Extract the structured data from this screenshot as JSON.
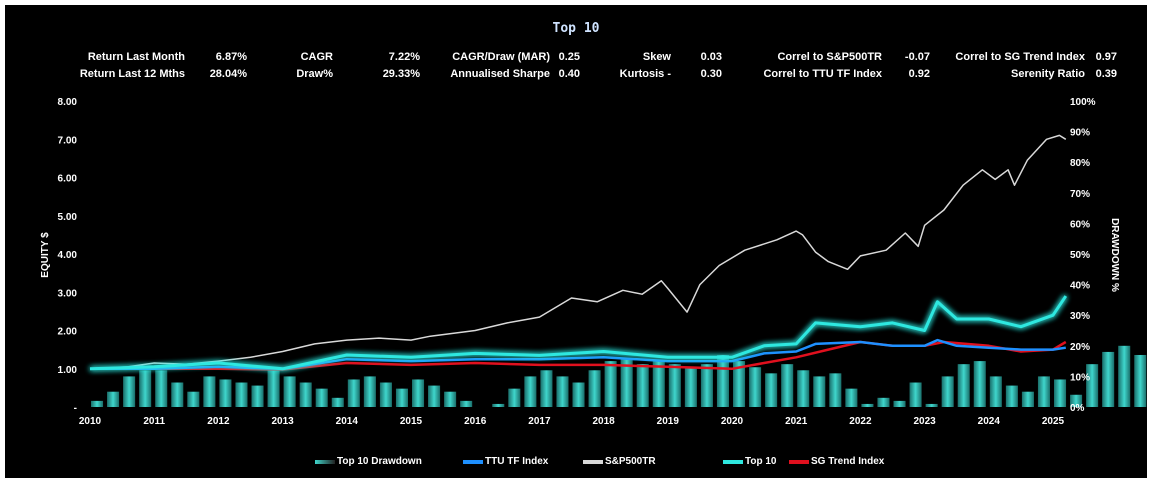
{
  "chart_data": {
    "type": "line",
    "title": "Top 10",
    "ylabel": "EQUITY $",
    "y2label": "DRAWDOWN %",
    "ylim": [
      0,
      8
    ],
    "y2lim": [
      0,
      100
    ],
    "xlim": [
      2010,
      2025.2
    ],
    "y_ticks": [
      "-",
      "1.00",
      "2.00",
      "3.00",
      "4.00",
      "5.00",
      "6.00",
      "7.00",
      "8.00"
    ],
    "y2_ticks": [
      "0%",
      "10%",
      "20%",
      "30%",
      "40%",
      "50%",
      "60%",
      "70%",
      "80%",
      "90%",
      "100%"
    ],
    "x_ticks": [
      "2010",
      "2011",
      "2012",
      "2013",
      "2014",
      "2015",
      "2016",
      "2017",
      "2018",
      "2019",
      "2020",
      "2021",
      "2022",
      "2023",
      "2024",
      "2025"
    ],
    "series": [
      {
        "name": "S&P500TR",
        "color": "#d9d9d9",
        "x": [
          2010,
          2010.6,
          2011,
          2011.5,
          2012,
          2012.5,
          2013,
          2013.5,
          2014,
          2014.5,
          2015,
          2015.3,
          2016,
          2016.5,
          2017,
          2017.5,
          2017.9,
          2018.3,
          2018.6,
          2018.9,
          2019.0,
          2019.3,
          2019.5,
          2019.8,
          2020.2,
          2020.7,
          2021.0,
          2021.1,
          2021.3,
          2021.5,
          2021.8,
          2022.0,
          2022.4,
          2022.7,
          2022.9,
          2023.0,
          2023.3,
          2023.6,
          2023.9,
          2024.1,
          2024.3,
          2024.4,
          2024.6,
          2024.9,
          2025.1,
          2025.2
        ],
        "values": [
          1.0,
          1.05,
          1.15,
          1.12,
          1.2,
          1.3,
          1.45,
          1.65,
          1.75,
          1.8,
          1.75,
          1.85,
          2.0,
          2.2,
          2.35,
          2.85,
          2.75,
          3.05,
          2.95,
          3.3,
          3.1,
          2.48,
          3.2,
          3.7,
          4.1,
          4.37,
          4.6,
          4.5,
          4.05,
          3.8,
          3.6,
          3.95,
          4.1,
          4.55,
          4.2,
          4.75,
          5.15,
          5.8,
          6.2,
          5.95,
          6.2,
          5.8,
          6.45,
          7.0,
          7.1,
          7.0
        ]
      },
      {
        "name": "Top 10",
        "color": "#2ee8e0",
        "x": [
          2010,
          2011,
          2012,
          2013,
          2014,
          2015,
          2016,
          2017,
          2018,
          2019,
          2020,
          2020.5,
          2021,
          2021.3,
          2022,
          2022.5,
          2023,
          2023.2,
          2023.5,
          2024,
          2024.5,
          2025,
          2025.2
        ],
        "values": [
          1.0,
          1.05,
          1.15,
          1.0,
          1.36,
          1.3,
          1.4,
          1.35,
          1.45,
          1.3,
          1.3,
          1.6,
          1.65,
          2.2,
          2.1,
          2.2,
          2.0,
          2.75,
          2.3,
          2.3,
          2.1,
          2.4,
          2.9
        ]
      },
      {
        "name": "TTU TF Index",
        "color": "#1e90ff",
        "x": [
          2010,
          2011,
          2012,
          2013,
          2014,
          2015,
          2016,
          2017,
          2018,
          2019,
          2020,
          2020.5,
          2021,
          2021.3,
          2022,
          2022.5,
          2023,
          2023.2,
          2023.5,
          2024,
          2024.5,
          2025,
          2025.2
        ],
        "values": [
          1.0,
          1.0,
          1.05,
          1.0,
          1.25,
          1.2,
          1.25,
          1.25,
          1.3,
          1.2,
          1.2,
          1.4,
          1.45,
          1.65,
          1.7,
          1.6,
          1.6,
          1.75,
          1.6,
          1.55,
          1.5,
          1.5,
          1.55
        ]
      },
      {
        "name": "SG Trend Index",
        "color": "#e0101e",
        "x": [
          2010,
          2011,
          2012,
          2013,
          2014,
          2015,
          2016,
          2017,
          2018,
          2019,
          2020,
          2020.5,
          2021,
          2021.5,
          2022,
          2022.5,
          2023,
          2023.3,
          2024,
          2024.5,
          2025,
          2025.2
        ],
        "values": [
          1.0,
          1.0,
          1.0,
          0.98,
          1.15,
          1.1,
          1.15,
          1.1,
          1.1,
          1.05,
          1.0,
          1.15,
          1.3,
          1.5,
          1.7,
          1.6,
          1.6,
          1.7,
          1.6,
          1.45,
          1.5,
          1.7
        ]
      }
    ],
    "drawdown": {
      "name": "Top 10 Drawdown",
      "start": 2010,
      "step": 0.25,
      "values": [
        2,
        5,
        10,
        12,
        12,
        8,
        5,
        10,
        9,
        8,
        7,
        12,
        10,
        8,
        6,
        3,
        9,
        10,
        8,
        6,
        9,
        7,
        5,
        2,
        0,
        1,
        6,
        10,
        12,
        10,
        8,
        12,
        15,
        16,
        14,
        15,
        14,
        13,
        14,
        17,
        15,
        13,
        11,
        14,
        12,
        10,
        11,
        6,
        1,
        3,
        2,
        8,
        1,
        10,
        14,
        15,
        10,
        7,
        5,
        10,
        9,
        4,
        14,
        18,
        20,
        17,
        25,
        22,
        17,
        12,
        8,
        3
      ]
    }
  },
  "title": "Top 10",
  "stats": [
    {
      "label": "Return Last Month",
      "value": "6.87%"
    },
    {
      "label": "Return Last 12 Mths",
      "value": "28.04%"
    },
    {
      "label": "CAGR",
      "value": "7.22%"
    },
    {
      "label": "Draw%",
      "value": "29.33%"
    },
    {
      "label": "CAGR/Draw (MAR)",
      "value": "0.25"
    },
    {
      "label": "Annualised Sharpe",
      "value": "0.40"
    },
    {
      "label": "Skew",
      "value": "0.03"
    },
    {
      "label": "Kurtosis  -",
      "value": "0.30"
    },
    {
      "label": "Correl to S&P500TR",
      "value": "-0.07"
    },
    {
      "label": "Correl to TTU TF Index",
      "value": "0.92"
    },
    {
      "label": "Correl to SG Trend Index",
      "value": "0.97"
    },
    {
      "label": "Serenity Ratio",
      "value": "0.39"
    }
  ],
  "legend": [
    "Top 10 Drawdown",
    "TTU TF Index",
    "S&P500TR",
    "Top 10",
    "SG Trend Index"
  ]
}
